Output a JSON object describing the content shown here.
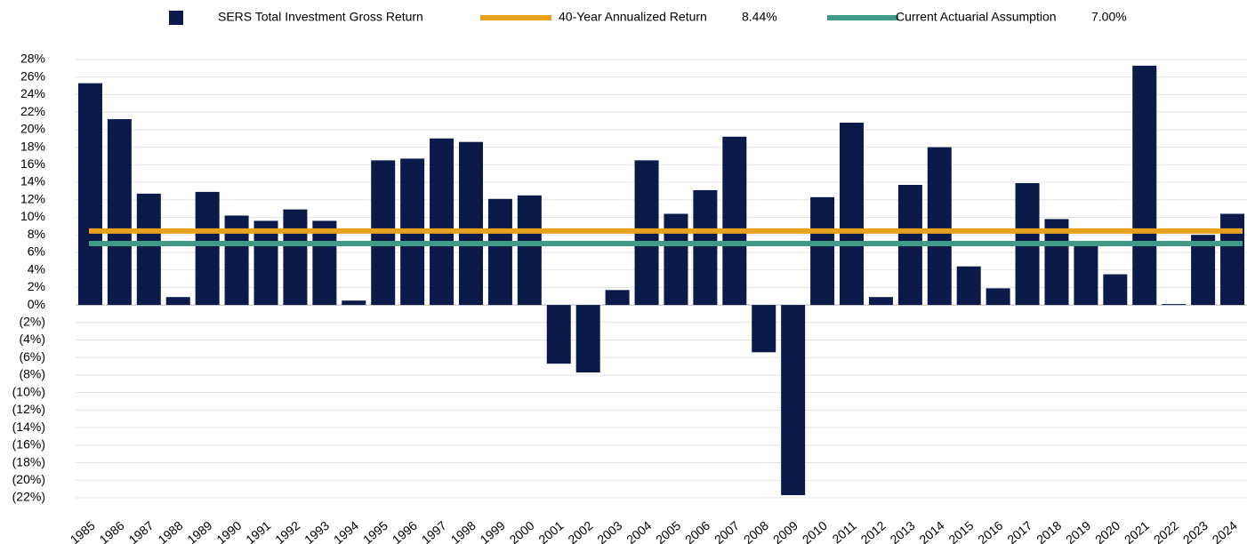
{
  "chart_data": {
    "type": "bar",
    "categories": [
      "1985",
      "1986",
      "1987",
      "1988",
      "1989",
      "1990",
      "1991",
      "1992",
      "1993",
      "1994",
      "1995",
      "1996",
      "1997",
      "1998",
      "1999",
      "2000",
      "2001",
      "2002",
      "2003",
      "2004",
      "2005",
      "2006",
      "2007",
      "2008",
      "2009",
      "2010",
      "2011",
      "2012",
      "2013",
      "2014",
      "2015",
      "2016",
      "2017",
      "2018",
      "2019",
      "2020",
      "2021",
      "2022",
      "2023",
      "2024"
    ],
    "series": [
      {
        "name": "SERS Total Investment Gross Return",
        "color": "#0b1a48",
        "values": [
          25.3,
          21.2,
          12.7,
          0.9,
          12.9,
          10.2,
          9.6,
          10.9,
          9.6,
          0.5,
          16.5,
          16.7,
          19.0,
          18.6,
          12.1,
          12.5,
          -6.7,
          -7.7,
          1.7,
          16.5,
          10.4,
          13.1,
          19.2,
          -5.4,
          -21.7,
          12.3,
          20.8,
          0.9,
          13.7,
          18.0,
          4.4,
          1.9,
          13.9,
          9.8,
          7.2,
          3.5,
          27.3,
          0.1,
          8.0,
          10.4
        ]
      }
    ],
    "reference_lines": [
      {
        "name": "40-Year Annualized Return",
        "value": 8.44,
        "value_label": "8.44%",
        "color": "#e8a11f"
      },
      {
        "name": "Current Actuarial Assumption",
        "value": 7.0,
        "value_label": "7.00%",
        "color": "#3f9a86"
      }
    ],
    "ylim": [
      -22,
      28
    ],
    "yticks": [
      {
        "value": 28,
        "label": "28%"
      },
      {
        "value": 26,
        "label": "26%"
      },
      {
        "value": 24,
        "label": "24%"
      },
      {
        "value": 22,
        "label": "22%"
      },
      {
        "value": 20,
        "label": "20%"
      },
      {
        "value": 18,
        "label": "18%"
      },
      {
        "value": 16,
        "label": "16%"
      },
      {
        "value": 14,
        "label": "14%"
      },
      {
        "value": 12,
        "label": "12%"
      },
      {
        "value": 10,
        "label": "10%"
      },
      {
        "value": 8,
        "label": "8%"
      },
      {
        "value": 6,
        "label": "6%"
      },
      {
        "value": 4,
        "label": "4%"
      },
      {
        "value": 2,
        "label": "2%"
      },
      {
        "value": 0,
        "label": "0%"
      },
      {
        "value": -2,
        "label": "(2%)"
      },
      {
        "value": -4,
        "label": "(4%)"
      },
      {
        "value": -6,
        "label": "(6%)"
      },
      {
        "value": -8,
        "label": "(8%)"
      },
      {
        "value": -10,
        "label": "(10%)"
      },
      {
        "value": -12,
        "label": "(12%)"
      },
      {
        "value": -14,
        "label": "(14%)"
      },
      {
        "value": -16,
        "label": "(16%)"
      },
      {
        "value": -18,
        "label": "(18%)"
      },
      {
        "value": -20,
        "label": "(20%)"
      },
      {
        "value": -22,
        "label": "(22%)"
      }
    ],
    "grid": true
  }
}
